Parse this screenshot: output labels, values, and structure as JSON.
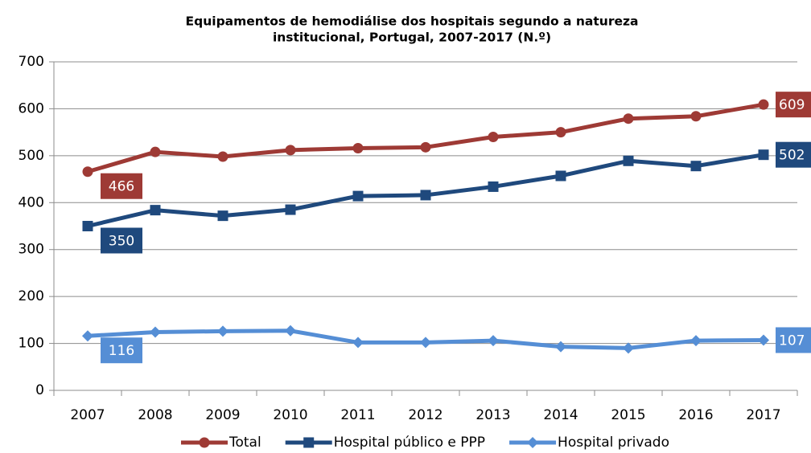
{
  "chart_data": {
    "type": "line",
    "title": [
      "Equipamentos de hemodiálise dos hospitais segundo a natureza",
      "institucional, Portugal, 2007-2017 (N.º)"
    ],
    "categories": [
      "2007",
      "2008",
      "2009",
      "2010",
      "2011",
      "2012",
      "2013",
      "2014",
      "2015",
      "2016",
      "2017"
    ],
    "series": [
      {
        "name": "Total",
        "color": "#9e3a35",
        "marker": "circle",
        "values": [
          466,
          508,
          498,
          512,
          516,
          518,
          540,
          550,
          579,
          584,
          609
        ]
      },
      {
        "name": "Hospital público e PPP",
        "color": "#1f497d",
        "marker": "square",
        "values": [
          350,
          384,
          372,
          385,
          414,
          416,
          434,
          457,
          489,
          478,
          502
        ]
      },
      {
        "name": "Hospital privado",
        "color": "#558ed5",
        "marker": "diamond",
        "values": [
          116,
          124,
          126,
          127,
          102,
          102,
          106,
          93,
          90,
          106,
          107
        ]
      }
    ],
    "ylim": [
      0,
      700
    ],
    "yticks": [
      0,
      100,
      200,
      300,
      400,
      500,
      600,
      700
    ],
    "grid": true,
    "legend": "bottom"
  }
}
